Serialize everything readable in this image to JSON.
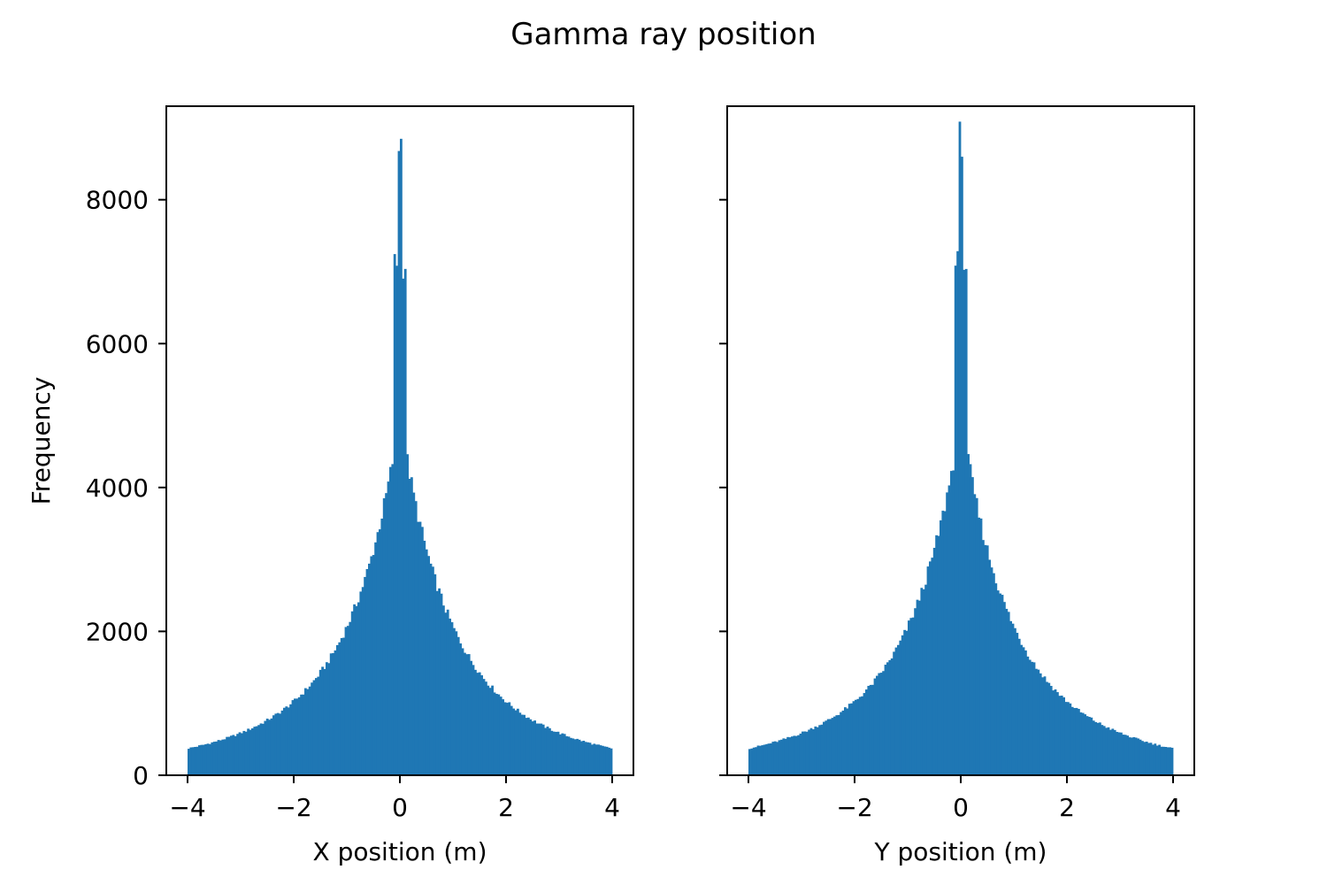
{
  "figure": {
    "title": "Gamma ray position"
  },
  "colors": {
    "bar": "#1f77b4",
    "axes": "#000000",
    "background": "#ffffff"
  },
  "chart_data": [
    {
      "type": "bar",
      "subtype": "histogram",
      "xlabel": "X position (m)",
      "ylabel": "Frequency",
      "xlim": [
        -4.4,
        4.4
      ],
      "ylim": [
        0,
        9300
      ],
      "xticks": [
        -4,
        -2,
        0,
        2,
        4
      ],
      "xtick_labels": [
        "−4",
        "−2",
        "0",
        "2",
        "4"
      ],
      "yticks": [
        0,
        2000,
        4000,
        6000,
        8000
      ],
      "ytick_labels": [
        "0",
        "2000",
        "4000",
        "6000",
        "8000"
      ],
      "bin_range": [
        -4,
        4
      ],
      "bin_width": 0.04,
      "profile": {
        "peak": 8800,
        "scale": 0.68,
        "shoulder_1": 4000,
        "shoulder_2": 1200,
        "edge": 320
      },
      "reference_values": [
        {
          "x": -4.0,
          "y": 320
        },
        {
          "x": -3.0,
          "y": 650
        },
        {
          "x": -2.0,
          "y": 1150
        },
        {
          "x": -1.0,
          "y": 2600
        },
        {
          "x": -0.5,
          "y": 4000
        },
        {
          "x": -0.1,
          "y": 6800
        },
        {
          "x": 0.0,
          "y": 8800
        },
        {
          "x": 0.1,
          "y": 6800
        },
        {
          "x": 0.5,
          "y": 4000
        },
        {
          "x": 1.0,
          "y": 2600
        },
        {
          "x": 2.0,
          "y": 1150
        },
        {
          "x": 3.0,
          "y": 650
        },
        {
          "x": 4.0,
          "y": 320
        }
      ]
    },
    {
      "type": "bar",
      "subtype": "histogram",
      "xlabel": "Y position (m)",
      "ylabel": "",
      "xlim": [
        -4.4,
        4.4
      ],
      "ylim": [
        0,
        9300
      ],
      "xticks": [
        -4,
        -2,
        0,
        2,
        4
      ],
      "xtick_labels": [
        "−4",
        "−2",
        "0",
        "2",
        "4"
      ],
      "yticks": [
        0,
        2000,
        4000,
        6000,
        8000
      ],
      "ytick_labels": [],
      "bin_range": [
        -4,
        4
      ],
      "bin_width": 0.04,
      "profile": {
        "peak": 8850,
        "scale": 0.68,
        "shoulder_1": 4000,
        "shoulder_2": 1200,
        "edge": 320
      },
      "reference_values": [
        {
          "x": -4.0,
          "y": 330
        },
        {
          "x": -3.0,
          "y": 640
        },
        {
          "x": -2.0,
          "y": 1150
        },
        {
          "x": -1.0,
          "y": 2600
        },
        {
          "x": -0.5,
          "y": 4000
        },
        {
          "x": -0.1,
          "y": 6900
        },
        {
          "x": 0.0,
          "y": 8850
        },
        {
          "x": 0.1,
          "y": 6900
        },
        {
          "x": 0.5,
          "y": 4000
        },
        {
          "x": 1.0,
          "y": 2600
        },
        {
          "x": 2.0,
          "y": 1150
        },
        {
          "x": 3.0,
          "y": 640
        },
        {
          "x": 4.0,
          "y": 310
        }
      ]
    }
  ]
}
